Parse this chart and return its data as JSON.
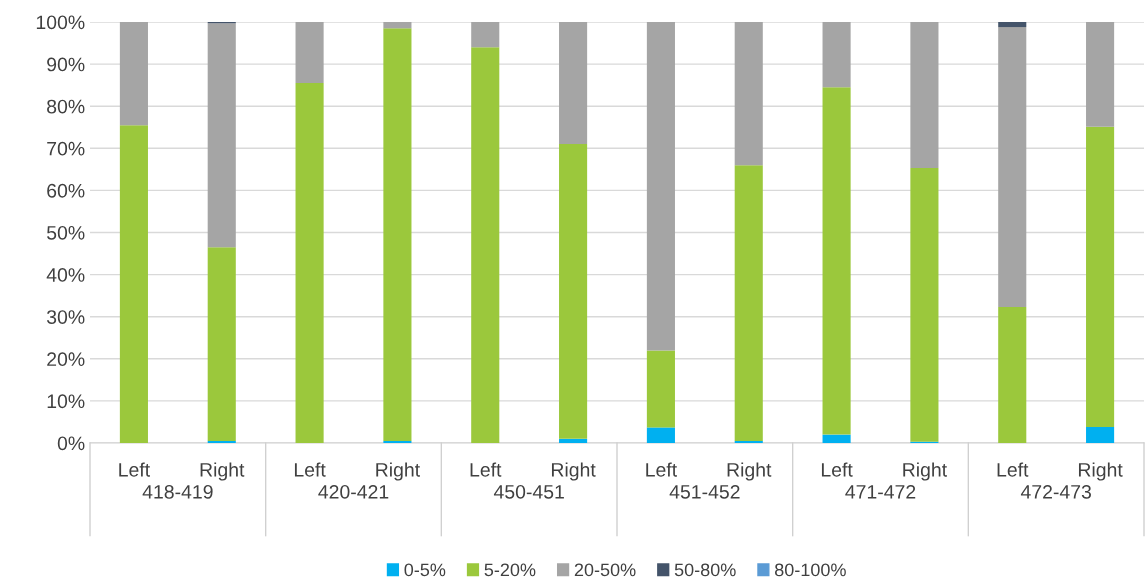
{
  "chart_data": {
    "type": "bar",
    "stacked": true,
    "categories": [
      "Left",
      "Right",
      "Left",
      "Right",
      "Left",
      "Right",
      "Left",
      "Right",
      "Left",
      "Right",
      "Left",
      "Right"
    ],
    "annotations": [
      "418-419",
      "420-421",
      "450-451",
      "451-452",
      "471-472",
      "472-473"
    ],
    "series": [
      {
        "name": "0-5%",
        "color": "#00b0f0",
        "values": [
          0,
          0.5,
          0,
          0.5,
          0,
          1,
          3.7,
          0.5,
          2,
          0.3,
          0,
          3.8
        ]
      },
      {
        "name": "5-20%",
        "color": "#9bc83c",
        "values": [
          75.5,
          46,
          85.5,
          98,
          94,
          70,
          18.3,
          65.5,
          82.5,
          65,
          32.3,
          71.3
        ]
      },
      {
        "name": "20-50%",
        "color": "#a5a5a5",
        "values": [
          24.5,
          53.2,
          14.5,
          1.5,
          6,
          29,
          78,
          34,
          15.5,
          34.7,
          66.5,
          24.9
        ]
      },
      {
        "name": "50-80%",
        "color": "#44546a",
        "values": [
          0,
          0.3,
          0,
          0,
          0,
          0,
          0,
          0,
          0,
          0,
          1.2,
          0
        ]
      },
      {
        "name": "80-100%",
        "color": "#5b9bd5",
        "values": [
          0,
          0,
          0,
          0,
          0,
          0,
          0,
          0,
          0,
          0,
          0,
          0
        ]
      }
    ],
    "ylim": [
      0,
      100
    ],
    "yticks": [
      {
        "value": 0,
        "label": "0%"
      },
      {
        "value": 10,
        "label": "10%"
      },
      {
        "value": 20,
        "label": "20%"
      },
      {
        "value": 30,
        "label": "30%"
      },
      {
        "value": 40,
        "label": "40%"
      },
      {
        "value": 50,
        "label": "50%"
      },
      {
        "value": 60,
        "label": "60%"
      },
      {
        "value": 70,
        "label": "70%"
      },
      {
        "value": 80,
        "label": "80%"
      },
      {
        "value": 90,
        "label": "90%"
      },
      {
        "value": 100,
        "label": "100%"
      }
    ],
    "grid": "y",
    "legend": "bottom"
  }
}
